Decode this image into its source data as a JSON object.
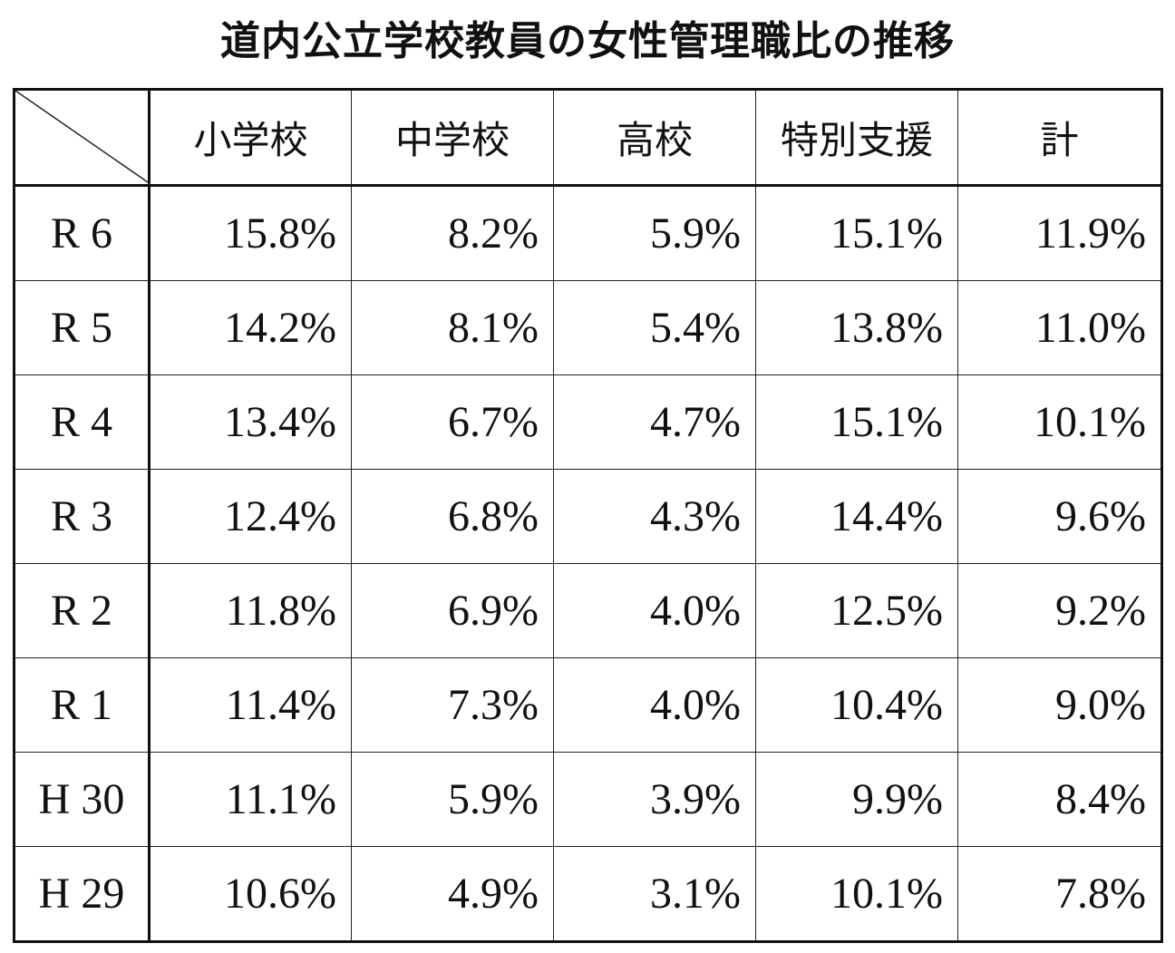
{
  "title": "道内公立学校教員の女性管理職比の推移",
  "table": {
    "columns": [
      "小学校",
      "中学校",
      "高校",
      "特別支援",
      "計"
    ],
    "rows": [
      [
        "R 6",
        "15.8%",
        "8.2%",
        "5.9%",
        "15.1%",
        "11.9%"
      ],
      [
        "R 5",
        "14.2%",
        "8.1%",
        "5.4%",
        "13.8%",
        "11.0%"
      ],
      [
        "R 4",
        "13.4%",
        "6.7%",
        "4.7%",
        "15.1%",
        "10.1%"
      ],
      [
        "R 3",
        "12.4%",
        "6.8%",
        "4.3%",
        "14.4%",
        "9.6%"
      ],
      [
        "R 2",
        "11.8%",
        "6.9%",
        "4.0%",
        "12.5%",
        "9.2%"
      ],
      [
        "R 1",
        "11.4%",
        "7.3%",
        "4.0%",
        "10.4%",
        "9.0%"
      ],
      [
        "H 30",
        "11.1%",
        "5.9%",
        "3.9%",
        "9.9%",
        "8.4%"
      ],
      [
        "H 29",
        "10.6%",
        "4.9%",
        "3.1%",
        "10.1%",
        "7.8%"
      ]
    ]
  }
}
